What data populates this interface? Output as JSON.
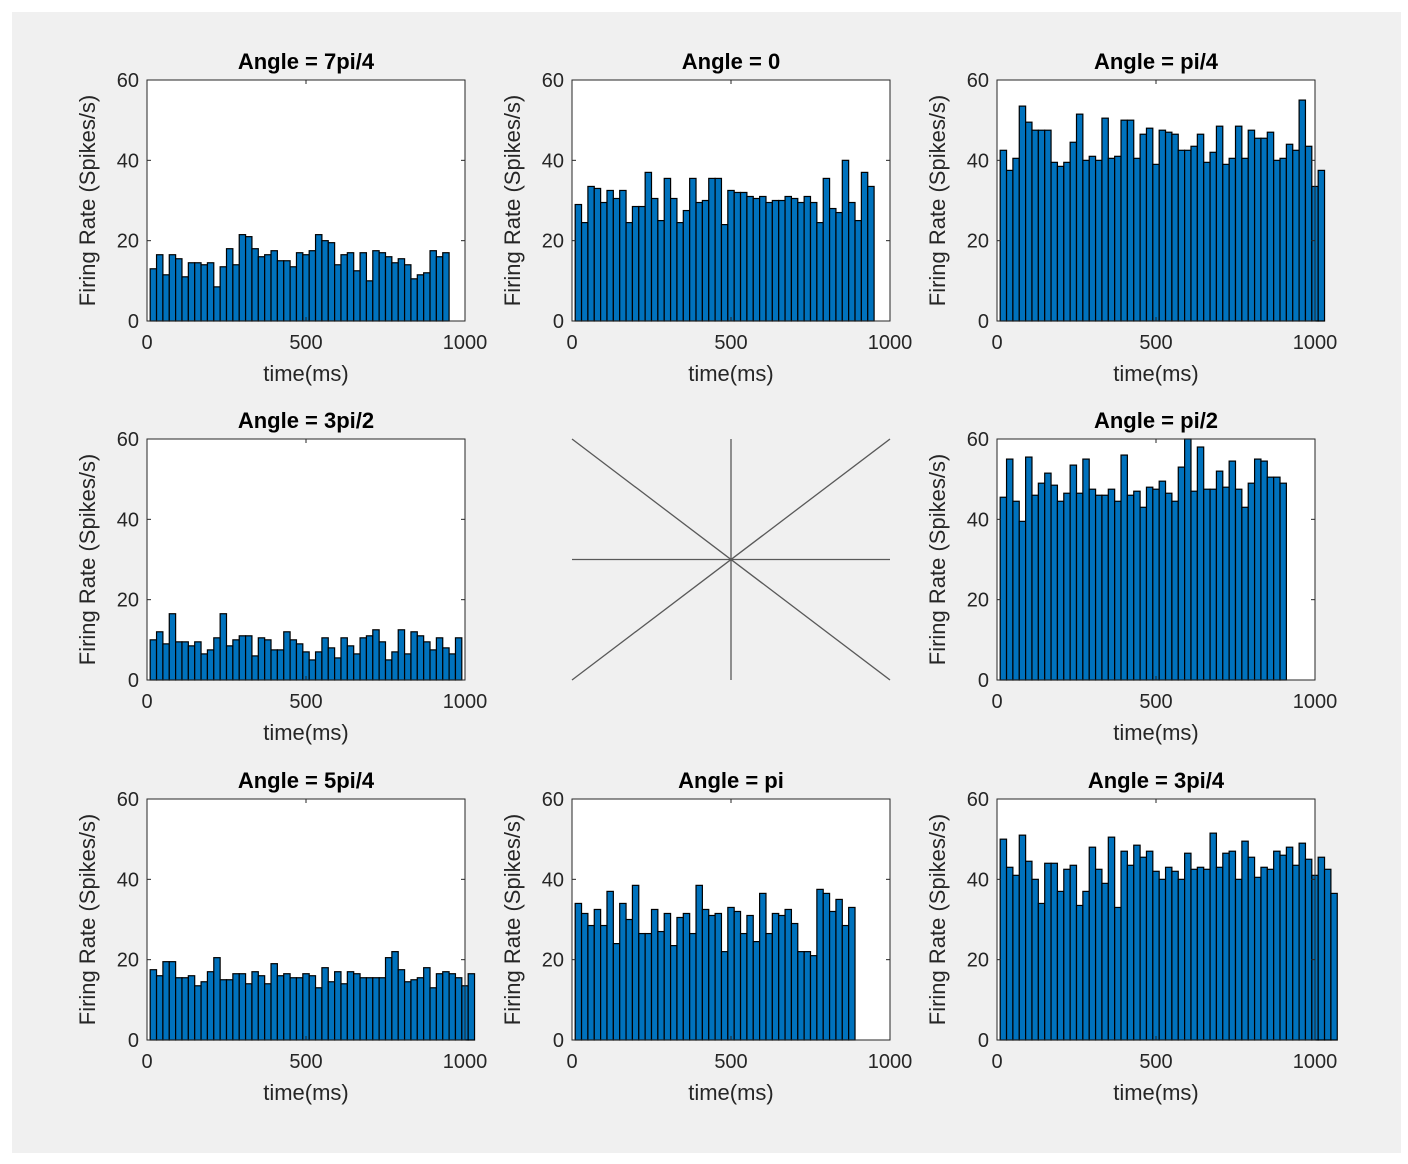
{
  "figure": {
    "background": "#f0f0f0",
    "bar_color": "#0072bd",
    "edge_color": "#000000"
  },
  "chart_data": [
    {
      "type": "bar",
      "title": "Angle = 7pi/4",
      "xlabel": "time(ms)",
      "ylabel": "Firing Rate (Spikes/s)",
      "xlim": [
        0,
        1000
      ],
      "ylim": [
        0,
        60
      ],
      "xticks": [
        "0",
        "500",
        "1000"
      ],
      "yticks": [
        "0",
        "20",
        "40",
        "60"
      ],
      "bin_width_ms": 20,
      "values": [
        13,
        16.5,
        11.5,
        16.5,
        15.5,
        11,
        14.5,
        14.5,
        14,
        14.5,
        8.5,
        13.5,
        18,
        14,
        21.5,
        21,
        18,
        16,
        16.5,
        17.5,
        15,
        15,
        13.5,
        17,
        16.5,
        17.5,
        21.5,
        20,
        19.5,
        14,
        16.5,
        17,
        12.5,
        17,
        10,
        17.5,
        17,
        16,
        14.5,
        15.5,
        14,
        10.5,
        11.5,
        12,
        17.5,
        16,
        17
      ]
    },
    {
      "type": "bar",
      "title": "Angle = 0",
      "xlabel": "time(ms)",
      "ylabel": "Firing Rate (Spikes/s)",
      "xlim": [
        0,
        1000
      ],
      "ylim": [
        0,
        60
      ],
      "xticks": [
        "0",
        "500",
        "1000"
      ],
      "yticks": [
        "0",
        "20",
        "40",
        "60"
      ],
      "bin_width_ms": 20,
      "values": [
        29,
        24.5,
        33.5,
        33,
        29.5,
        32.5,
        30.5,
        32.5,
        24.5,
        28.5,
        28.5,
        37,
        30.5,
        25,
        35.5,
        30.5,
        24.5,
        27.5,
        35.5,
        29.5,
        30,
        35.5,
        35.5,
        24,
        32.5,
        32,
        32,
        31,
        30.5,
        31,
        29.5,
        30,
        30,
        31,
        30.5,
        29.5,
        31,
        29.5,
        24.5,
        35.5,
        28,
        27,
        40,
        29.5,
        25,
        37,
        33.5
      ]
    },
    {
      "type": "bar",
      "title": "Angle = pi/4",
      "xlabel": "time(ms)",
      "ylabel": "Firing Rate (Spikes/s)",
      "xlim": [
        0,
        1000
      ],
      "ylim": [
        0,
        60
      ],
      "xticks": [
        "0",
        "500",
        "1000"
      ],
      "yticks": [
        "0",
        "20",
        "40",
        "60"
      ],
      "bin_width_ms": 20,
      "values": [
        42.5,
        37.5,
        40.5,
        53.5,
        49.5,
        47.5,
        47.5,
        47.5,
        39.5,
        38.5,
        39.5,
        44.5,
        51.5,
        40,
        41,
        40,
        50.5,
        40.5,
        41,
        50,
        50,
        40.5,
        46.5,
        48,
        39,
        47.5,
        47,
        46.5,
        42.5,
        42.5,
        43.5,
        46.5,
        39.5,
        42,
        48.5,
        39,
        40.5,
        48.5,
        40.5,
        47.5,
        45.5,
        45.5,
        47,
        40,
        40.5,
        44,
        42.5,
        55,
        43.5,
        33.5,
        37.5
      ]
    },
    {
      "type": "bar",
      "title": "Angle = 3pi/2",
      "xlabel": "time(ms)",
      "ylabel": "Firing Rate (Spikes/s)",
      "xlim": [
        0,
        1000
      ],
      "ylim": [
        0,
        60
      ],
      "xticks": [
        "0",
        "500",
        "1000"
      ],
      "yticks": [
        "0",
        "20",
        "40",
        "60"
      ],
      "bin_width_ms": 20,
      "values": [
        10,
        12,
        9,
        16.5,
        9.5,
        9.5,
        8.5,
        9.5,
        6.5,
        7.5,
        10.5,
        16.5,
        8.5,
        10,
        11,
        11,
        6,
        10.5,
        10,
        7.5,
        7.5,
        12,
        10,
        9,
        7,
        5,
        7,
        10.5,
        8,
        5.5,
        10.5,
        8.5,
        6.5,
        10.5,
        11,
        12.5,
        9.5,
        5,
        7,
        12.5,
        6.5,
        12,
        11,
        9.5,
        7.5,
        10.5,
        8,
        6.5,
        10.5
      ]
    },
    {
      "type": "bar",
      "title": "Angle = pi/2",
      "xlabel": "time(ms)",
      "ylabel": "Firing Rate (Spikes/s)",
      "xlim": [
        0,
        1000
      ],
      "ylim": [
        0,
        60
      ],
      "xticks": [
        "0",
        "500",
        "1000"
      ],
      "yticks": [
        "0",
        "20",
        "40",
        "60"
      ],
      "bin_width_ms": 20,
      "values": [
        45.5,
        55,
        44.5,
        39.5,
        55.5,
        46,
        49,
        51.5,
        48.5,
        44.5,
        46.5,
        53.5,
        46.5,
        55,
        47.5,
        46,
        46,
        47.5,
        44.5,
        56,
        46,
        47,
        43,
        48,
        47.5,
        49.5,
        46.5,
        44.5,
        53,
        60,
        47,
        58,
        47.5,
        47.5,
        52,
        48,
        54.5,
        47.5,
        43,
        49,
        55,
        54.5,
        50.5,
        50.5,
        49
      ]
    },
    {
      "type": "bar",
      "title": "Angle = 5pi/4",
      "xlabel": "time(ms)",
      "ylabel": "Firing Rate (Spikes/s)",
      "xlim": [
        0,
        1000
      ],
      "ylim": [
        0,
        60
      ],
      "xticks": [
        "0",
        "500",
        "1000"
      ],
      "yticks": [
        "0",
        "20",
        "40",
        "60"
      ],
      "bin_width_ms": 20,
      "values": [
        17.5,
        16,
        19.5,
        19.5,
        15.5,
        15.5,
        16,
        13.5,
        14.5,
        17,
        20.5,
        15,
        15,
        16.5,
        16.5,
        14,
        17,
        16,
        14,
        19,
        16,
        16.5,
        15.5,
        15.5,
        16.5,
        16,
        13,
        18,
        14.5,
        17,
        14,
        17,
        16.5,
        15.5,
        15.5,
        15.5,
        15.5,
        20.5,
        22,
        17.5,
        14.5,
        15,
        15.5,
        18,
        13,
        16.5,
        17,
        16.5,
        15.5,
        13.5,
        16.5
      ]
    },
    {
      "type": "bar",
      "title": "Angle = pi",
      "xlabel": "time(ms)",
      "ylabel": "Firing Rate (Spikes/s)",
      "xlim": [
        0,
        1000
      ],
      "ylim": [
        0,
        60
      ],
      "xticks": [
        "0",
        "500",
        "1000"
      ],
      "yticks": [
        "0",
        "20",
        "40",
        "60"
      ],
      "bin_width_ms": 20,
      "values": [
        34,
        31.5,
        28.5,
        32.5,
        28.5,
        37,
        24,
        34,
        30,
        38.5,
        26.5,
        26.5,
        32.5,
        27,
        31.5,
        23.5,
        30.5,
        31.5,
        26.5,
        38.5,
        32.5,
        31,
        31.5,
        22,
        33,
        32,
        26.5,
        31,
        24.5,
        36.5,
        26.5,
        31.5,
        31,
        32.5,
        29,
        22,
        22,
        21,
        37.5,
        36.5,
        32,
        35,
        28.5,
        33
      ]
    },
    {
      "type": "bar",
      "title": "Angle = 3pi/4",
      "xlabel": "time(ms)",
      "ylabel": "Firing Rate (Spikes/s)",
      "xlim": [
        0,
        1000
      ],
      "ylim": [
        0,
        60
      ],
      "xticks": [
        "0",
        "500",
        "1000"
      ],
      "yticks": [
        "0",
        "20",
        "40",
        "60"
      ],
      "bin_width_ms": 20,
      "values": [
        50,
        43,
        41,
        51,
        44.5,
        40,
        34,
        44,
        44,
        37,
        42.5,
        43.5,
        33.5,
        37,
        48,
        42.5,
        39,
        50.5,
        33,
        47,
        43.5,
        48.5,
        45.5,
        47,
        42,
        40,
        43,
        42,
        40,
        46.5,
        42.5,
        43,
        42.5,
        51.5,
        43,
        46.5,
        47,
        40,
        49.5,
        45.5,
        40.5,
        43,
        42.5,
        47,
        46,
        48,
        43.5,
        49,
        45,
        41,
        45.5,
        42.5,
        36.5
      ]
    }
  ]
}
